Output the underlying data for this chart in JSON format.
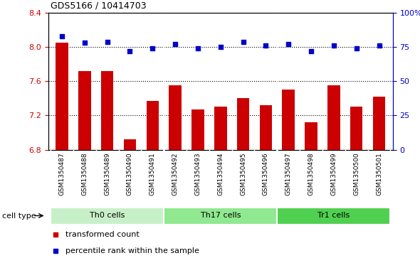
{
  "title": "GDS5166 / 10414703",
  "samples": [
    "GSM1350487",
    "GSM1350488",
    "GSM1350489",
    "GSM1350490",
    "GSM1350491",
    "GSM1350492",
    "GSM1350493",
    "GSM1350494",
    "GSM1350495",
    "GSM1350496",
    "GSM1350497",
    "GSM1350498",
    "GSM1350499",
    "GSM1350500",
    "GSM1350501"
  ],
  "transformed_count": [
    8.05,
    7.72,
    7.72,
    6.92,
    7.37,
    7.55,
    7.27,
    7.3,
    7.4,
    7.32,
    7.5,
    7.12,
    7.55,
    7.3,
    7.42
  ],
  "percentile_rank": [
    83,
    78,
    79,
    72,
    74,
    77,
    74,
    75,
    79,
    76,
    77,
    72,
    76,
    74,
    76
  ],
  "cell_types": [
    {
      "label": "Th0 cells",
      "start": 0,
      "end": 5,
      "color": "#c8f0c8"
    },
    {
      "label": "Th17 cells",
      "start": 5,
      "end": 10,
      "color": "#90e890"
    },
    {
      "label": "Tr1 cells",
      "start": 10,
      "end": 15,
      "color": "#50d050"
    }
  ],
  "bar_color": "#cc0000",
  "dot_color": "#0000cc",
  "ylim_left": [
    6.8,
    8.4
  ],
  "ylim_right": [
    0,
    100
  ],
  "yticks_left": [
    6.8,
    7.2,
    7.6,
    8.0,
    8.4
  ],
  "yticks_right": [
    0,
    25,
    50,
    75,
    100
  ],
  "ytick_labels_right": [
    "0",
    "25",
    "50",
    "75",
    "100%"
  ],
  "grid_values": [
    8.0,
    7.6,
    7.2
  ],
  "legend_items": [
    {
      "color": "#cc0000",
      "label": "transformed count"
    },
    {
      "color": "#0000cc",
      "label": "percentile rank within the sample"
    }
  ],
  "cell_type_label": "cell type",
  "bg_color": "#d8d8d8",
  "plot_bg_color": "#ffffff"
}
